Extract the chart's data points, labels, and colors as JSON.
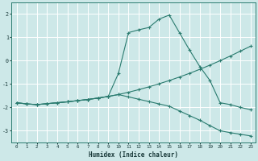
{
  "xlabel": "Humidex (Indice chaleur)",
  "background_color": "#cde8e8",
  "grid_color": "#ffffff",
  "line_color": "#2a7b6f",
  "xlim": [
    -0.5,
    23.5
  ],
  "ylim": [
    -3.5,
    2.5
  ],
  "xticks": [
    0,
    1,
    2,
    3,
    4,
    5,
    6,
    7,
    8,
    9,
    10,
    11,
    12,
    13,
    14,
    15,
    16,
    17,
    18,
    19,
    20,
    21,
    22,
    23
  ],
  "yticks": [
    -3,
    -2,
    -1,
    0,
    1,
    2
  ],
  "line1_x": [
    0,
    1,
    2,
    3,
    4,
    5,
    6,
    7,
    8,
    9,
    10,
    11,
    12,
    13,
    14,
    15,
    16,
    17,
    18,
    19,
    20,
    21,
    22,
    23
  ],
  "line1_y": [
    -1.8,
    -1.85,
    -1.88,
    -1.84,
    -1.8,
    -1.76,
    -1.71,
    -1.66,
    -1.6,
    -1.53,
    -1.45,
    -1.35,
    -1.24,
    -1.12,
    -0.99,
    -0.85,
    -0.7,
    -0.54,
    -0.37,
    -0.19,
    0.0,
    0.2,
    0.41,
    0.62
  ],
  "line2_x": [
    0,
    1,
    2,
    3,
    4,
    5,
    6,
    7,
    8,
    9,
    10,
    11,
    12,
    13,
    14,
    15,
    16,
    17,
    18,
    19,
    20,
    21,
    22,
    23
  ],
  "line2_y": [
    -1.8,
    -1.85,
    -1.88,
    -1.84,
    -1.8,
    -1.76,
    -1.71,
    -1.66,
    -1.6,
    -1.53,
    -0.55,
    1.2,
    1.32,
    1.42,
    1.78,
    1.95,
    1.2,
    0.45,
    -0.25,
    -0.85,
    -1.8,
    -1.88,
    -2.0,
    -2.1
  ],
  "line3_x": [
    0,
    1,
    2,
    3,
    4,
    5,
    6,
    7,
    8,
    9,
    10,
    11,
    12,
    13,
    14,
    15,
    16,
    17,
    18,
    19,
    20,
    21,
    22,
    23
  ],
  "line3_y": [
    -1.8,
    -1.85,
    -1.88,
    -1.84,
    -1.8,
    -1.76,
    -1.71,
    -1.66,
    -1.6,
    -1.53,
    -1.45,
    -1.55,
    -1.65,
    -1.75,
    -1.85,
    -1.95,
    -2.15,
    -2.35,
    -2.55,
    -2.78,
    -3.0,
    -3.08,
    -3.15,
    -3.22
  ]
}
